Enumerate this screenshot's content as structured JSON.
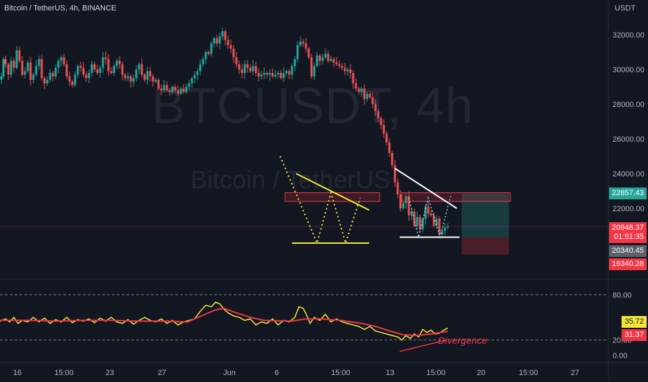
{
  "symbol_title": "Bitcoin / TetherUS, 4h, BINANCE",
  "watermark": {
    "line1": "BTCUSDT, 4h",
    "line2": "Bitcoin / TetherUS"
  },
  "currency": "USDT",
  "price_scale": {
    "ticks": [
      "32000.00",
      "30000.00",
      "28000.00",
      "26000.00",
      "24000.00",
      "22000.00"
    ],
    "tick_values": [
      32000,
      30000,
      28000,
      26000,
      24000,
      22000
    ],
    "ylim": [
      18200,
      33200
    ]
  },
  "price_tags": {
    "target": "22857.43",
    "last": "20948.37",
    "countdown": "01:51:35",
    "entry": "20340.45",
    "stop": "19340.28"
  },
  "rsi_scale": {
    "ticks": [
      "80.00",
      "20.00",
      "0.00"
    ],
    "tick_values": [
      80,
      20,
      0
    ],
    "ylim": [
      -8,
      95
    ]
  },
  "rsi_tags": {
    "rsi": "35.72",
    "ma": "31.37"
  },
  "annotation_text": "Divergence",
  "time_axis": [
    "16",
    "15:00",
    "23",
    "27",
    "Jun",
    "6",
    "15:00",
    "13",
    "15:00",
    "20",
    "15:00",
    "27"
  ],
  "chart_data": {
    "type": "candlestick",
    "title": "Bitcoin / TetherUS, 4h, BINANCE",
    "y_unit": "USDT",
    "close_path": [
      [
        0,
        29400
      ],
      [
        2,
        29600
      ],
      [
        5,
        30600
      ],
      [
        8,
        30300
      ],
      [
        12,
        29700
      ],
      [
        16,
        30500
      ],
      [
        20,
        30100
      ],
      [
        24,
        31100
      ],
      [
        28,
        30500
      ],
      [
        32,
        29700
      ],
      [
        36,
        29900
      ],
      [
        40,
        30400
      ],
      [
        44,
        29400
      ],
      [
        48,
        29700
      ],
      [
        52,
        30200
      ],
      [
        56,
        30600
      ],
      [
        60,
        29500
      ],
      [
        64,
        29200
      ],
      [
        68,
        29400
      ],
      [
        72,
        29800
      ],
      [
        76,
        29600
      ],
      [
        80,
        30100
      ],
      [
        84,
        30500
      ],
      [
        88,
        30700
      ],
      [
        92,
        30300
      ],
      [
        96,
        29600
      ],
      [
        100,
        29300
      ],
      [
        104,
        29100
      ],
      [
        108,
        29700
      ],
      [
        112,
        30200
      ],
      [
        116,
        30100
      ],
      [
        120,
        29700
      ],
      [
        124,
        29500
      ],
      [
        128,
        29800
      ],
      [
        132,
        30300
      ],
      [
        136,
        30000
      ],
      [
        140,
        29800
      ],
      [
        144,
        30100
      ],
      [
        148,
        30700
      ],
      [
        152,
        30600
      ],
      [
        156,
        29900
      ],
      [
        160,
        29800
      ],
      [
        164,
        30200
      ],
      [
        168,
        30500
      ],
      [
        172,
        30300
      ],
      [
        176,
        29700
      ],
      [
        180,
        29500
      ],
      [
        184,
        29600
      ],
      [
        188,
        29300
      ],
      [
        192,
        29500
      ],
      [
        196,
        30000
      ],
      [
        200,
        30300
      ],
      [
        204,
        29700
      ],
      [
        208,
        29400
      ],
      [
        212,
        29900
      ],
      [
        216,
        29600
      ],
      [
        220,
        29300
      ],
      [
        224,
        29400
      ],
      [
        228,
        28900
      ],
      [
        232,
        28800
      ],
      [
        236,
        29100
      ],
      [
        240,
        28800
      ],
      [
        244,
        28700
      ],
      [
        248,
        29000
      ],
      [
        252,
        28800
      ],
      [
        256,
        28600
      ],
      [
        260,
        28900
      ],
      [
        264,
        28700
      ],
      [
        268,
        29000
      ],
      [
        272,
        29200
      ],
      [
        276,
        29500
      ],
      [
        280,
        29700
      ],
      [
        284,
        29900
      ],
      [
        288,
        30300
      ],
      [
        292,
        30600
      ],
      [
        296,
        31000
      ],
      [
        300,
        30900
      ],
      [
        304,
        31500
      ],
      [
        308,
        31800
      ],
      [
        312,
        31500
      ],
      [
        316,
        31900
      ],
      [
        320,
        32200
      ],
      [
        324,
        31700
      ],
      [
        328,
        31400
      ],
      [
        332,
        31200
      ],
      [
        336,
        30700
      ],
      [
        340,
        30300
      ],
      [
        344,
        30000
      ],
      [
        348,
        29800
      ],
      [
        352,
        30300
      ],
      [
        356,
        30100
      ],
      [
        360,
        29900
      ],
      [
        364,
        30200
      ],
      [
        368,
        29800
      ],
      [
        372,
        29600
      ],
      [
        376,
        29700
      ],
      [
        380,
        29800
      ],
      [
        384,
        29700
      ],
      [
        388,
        29800
      ],
      [
        392,
        29600
      ],
      [
        396,
        29700
      ],
      [
        400,
        29800
      ],
      [
        404,
        29500
      ],
      [
        408,
        29800
      ],
      [
        412,
        29900
      ],
      [
        416,
        29700
      ],
      [
        420,
        30200
      ],
      [
        424,
        30600
      ],
      [
        428,
        31400
      ],
      [
        432,
        31600
      ],
      [
        436,
        31500
      ],
      [
        440,
        31200
      ],
      [
        444,
        30700
      ],
      [
        448,
        29600
      ],
      [
        452,
        30200
      ],
      [
        456,
        30800
      ],
      [
        460,
        30500
      ],
      [
        464,
        30700
      ],
      [
        468,
        30900
      ],
      [
        472,
        30500
      ],
      [
        476,
        30600
      ],
      [
        480,
        30400
      ],
      [
        484,
        30300
      ],
      [
        488,
        30200
      ],
      [
        492,
        30100
      ],
      [
        496,
        29900
      ],
      [
        500,
        30000
      ],
      [
        504,
        29800
      ],
      [
        508,
        29200
      ],
      [
        512,
        28900
      ],
      [
        516,
        28700
      ],
      [
        520,
        28900
      ],
      [
        524,
        28300
      ],
      [
        528,
        28600
      ],
      [
        532,
        28400
      ],
      [
        536,
        28000
      ],
      [
        540,
        27600
      ],
      [
        544,
        27200
      ],
      [
        548,
        26800
      ],
      [
        552,
        26300
      ],
      [
        556,
        25800
      ],
      [
        560,
        25200
      ],
      [
        564,
        24500
      ],
      [
        568,
        23500
      ],
      [
        572,
        22800
      ],
      [
        576,
        22000
      ],
      [
        580,
        22300
      ],
      [
        584,
        22700
      ],
      [
        588,
        21600
      ],
      [
        592,
        21800
      ],
      [
        596,
        21000
      ],
      [
        600,
        21500
      ],
      [
        604,
        20800
      ],
      [
        608,
        21400
      ],
      [
        612,
        22100
      ],
      [
        616,
        21700
      ],
      [
        620,
        21600
      ],
      [
        624,
        21000
      ],
      [
        628,
        21400
      ],
      [
        632,
        20500
      ],
      [
        636,
        20700
      ],
      [
        640,
        20900
      ],
      [
        644,
        20948
      ]
    ],
    "rsi_path": [
      [
        0,
        45
      ],
      [
        8,
        48
      ],
      [
        14,
        44
      ],
      [
        20,
        50
      ],
      [
        26,
        42
      ],
      [
        32,
        46
      ],
      [
        40,
        44
      ],
      [
        48,
        50
      ],
      [
        56,
        44
      ],
      [
        64,
        49
      ],
      [
        72,
        42
      ],
      [
        80,
        47
      ],
      [
        88,
        44
      ],
      [
        96,
        50
      ],
      [
        104,
        43
      ],
      [
        112,
        47
      ],
      [
        120,
        45
      ],
      [
        128,
        48
      ],
      [
        136,
        43
      ],
      [
        144,
        49
      ],
      [
        152,
        45
      ],
      [
        160,
        50
      ],
      [
        168,
        44
      ],
      [
        176,
        42
      ],
      [
        184,
        47
      ],
      [
        192,
        41
      ],
      [
        200,
        46
      ],
      [
        208,
        50
      ],
      [
        216,
        46
      ],
      [
        224,
        44
      ],
      [
        232,
        48
      ],
      [
        240,
        42
      ],
      [
        248,
        46
      ],
      [
        256,
        40
      ],
      [
        264,
        44
      ],
      [
        272,
        46
      ],
      [
        280,
        48
      ],
      [
        288,
        58
      ],
      [
        296,
        66
      ],
      [
        304,
        64
      ],
      [
        310,
        70
      ],
      [
        316,
        68
      ],
      [
        322,
        61
      ],
      [
        328,
        56
      ],
      [
        336,
        52
      ],
      [
        344,
        50
      ],
      [
        352,
        46
      ],
      [
        360,
        48
      ],
      [
        368,
        40
      ],
      [
        376,
        44
      ],
      [
        384,
        42
      ],
      [
        392,
        48
      ],
      [
        400,
        40
      ],
      [
        408,
        46
      ],
      [
        416,
        44
      ],
      [
        424,
        50
      ],
      [
        430,
        64
      ],
      [
        436,
        62
      ],
      [
        440,
        55
      ],
      [
        446,
        42
      ],
      [
        452,
        50
      ],
      [
        460,
        46
      ],
      [
        468,
        54
      ],
      [
        476,
        44
      ],
      [
        484,
        48
      ],
      [
        492,
        44
      ],
      [
        500,
        42
      ],
      [
        508,
        40
      ],
      [
        516,
        38
      ],
      [
        524,
        34
      ],
      [
        532,
        38
      ],
      [
        540,
        32
      ],
      [
        548,
        30
      ],
      [
        556,
        28
      ],
      [
        564,
        26
      ],
      [
        572,
        24
      ],
      [
        578,
        20
      ],
      [
        584,
        26
      ],
      [
        590,
        22
      ],
      [
        596,
        28
      ],
      [
        602,
        24
      ],
      [
        608,
        34
      ],
      [
        614,
        30
      ],
      [
        620,
        33
      ],
      [
        626,
        28
      ],
      [
        632,
        29
      ],
      [
        638,
        33
      ],
      [
        644,
        35.72
      ]
    ],
    "rsi_ma_path": [
      [
        0,
        46
      ],
      [
        40,
        46
      ],
      [
        80,
        45
      ],
      [
        120,
        46
      ],
      [
        160,
        46
      ],
      [
        200,
        45
      ],
      [
        240,
        45
      ],
      [
        270,
        44
      ],
      [
        290,
        52
      ],
      [
        310,
        60
      ],
      [
        322,
        62
      ],
      [
        340,
        56
      ],
      [
        360,
        50
      ],
      [
        380,
        46
      ],
      [
        420,
        45
      ],
      [
        440,
        48
      ],
      [
        460,
        48
      ],
      [
        490,
        46
      ],
      [
        520,
        42
      ],
      [
        540,
        38
      ],
      [
        560,
        32
      ],
      [
        580,
        27
      ],
      [
        600,
        26
      ],
      [
        620,
        28
      ],
      [
        644,
        31.37
      ]
    ],
    "rsi_bands": [
      80,
      20
    ],
    "patterns": [
      {
        "name": "double bottom (left)",
        "neckline_price": 22400,
        "support_price": 20000
      },
      {
        "name": "double bottom (right)",
        "support_price": 20340
      }
    ],
    "position": {
      "target": 22857.43,
      "entry": 20340.45,
      "stop": 19340.28
    }
  }
}
